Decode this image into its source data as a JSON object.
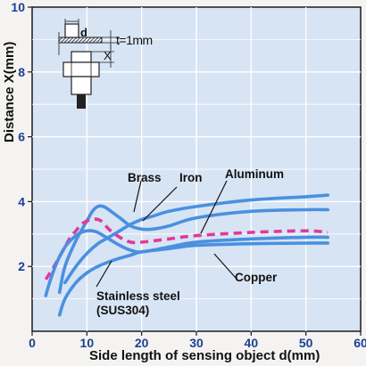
{
  "chart_data": {
    "type": "line",
    "title": "",
    "xlabel": "Side length of sensing object d(mm)",
    "ylabel": "Distance X(mm)",
    "xlim": [
      0,
      60
    ],
    "ylim": [
      0,
      10
    ],
    "x_ticks": [
      "0",
      "10",
      "20",
      "30",
      "40",
      "50",
      "60"
    ],
    "y_ticks": [
      "2",
      "4",
      "6",
      "8",
      "10"
    ],
    "grid": true,
    "legend": "none (curves labeled directly with callouts)",
    "series": [
      {
        "name": "Brass",
        "style": "solid",
        "color": "#4a90e0",
        "x": [
          5,
          6,
          8,
          10,
          11,
          12,
          13,
          14,
          16,
          18,
          20,
          22,
          25,
          30,
          40,
          50,
          54
        ],
        "y": [
          1.2,
          2.0,
          2.8,
          3.4,
          3.7,
          3.85,
          3.85,
          3.75,
          3.5,
          3.25,
          3.15,
          3.15,
          3.25,
          3.5,
          3.7,
          3.75,
          3.75
        ]
      },
      {
        "name": "Iron",
        "style": "solid",
        "color": "#4a90e0",
        "x": [
          6,
          8,
          10,
          12,
          14,
          16,
          18,
          20,
          22,
          25,
          30,
          40,
          50,
          54
        ],
        "y": [
          1.5,
          2.0,
          2.4,
          2.7,
          2.9,
          3.1,
          3.3,
          3.45,
          3.55,
          3.7,
          3.85,
          4.05,
          4.15,
          4.2
        ]
      },
      {
        "name": "Aluminum",
        "style": "dashed",
        "color": "#e03a9a",
        "x": [
          2.5,
          4,
          5,
          6,
          7,
          8,
          9,
          10,
          11,
          12,
          13,
          14,
          16,
          18,
          20,
          25,
          30,
          40,
          50,
          54
        ],
        "y": [
          1.6,
          2.0,
          2.3,
          2.6,
          2.9,
          3.1,
          3.3,
          3.4,
          3.45,
          3.45,
          3.35,
          3.15,
          2.9,
          2.75,
          2.75,
          2.85,
          2.95,
          3.05,
          3.1,
          3.05
        ]
      },
      {
        "name": "Copper",
        "style": "solid",
        "color": "#4a90e0",
        "x": [
          2.5,
          3,
          4,
          5,
          6,
          7,
          8,
          9,
          10,
          11,
          12,
          13,
          14,
          16,
          18,
          20,
          25,
          30,
          40,
          50,
          54
        ],
        "y": [
          1.1,
          1.4,
          1.9,
          2.3,
          2.6,
          2.8,
          2.95,
          3.05,
          3.1,
          3.1,
          3.05,
          2.95,
          2.85,
          2.65,
          2.5,
          2.45,
          2.6,
          2.75,
          2.85,
          2.9,
          2.9
        ]
      },
      {
        "name": "Stainless steel (SUS304)",
        "style": "solid",
        "color": "#4a90e0",
        "x": [
          5,
          6,
          8,
          10,
          12,
          15,
          18,
          20,
          25,
          30,
          40,
          50,
          54
        ],
        "y": [
          0.5,
          1.0,
          1.5,
          1.8,
          2.0,
          2.2,
          2.35,
          2.45,
          2.55,
          2.65,
          2.7,
          2.72,
          2.72
        ]
      }
    ],
    "annotations": [
      {
        "text": "Brass",
        "points_to": "Brass"
      },
      {
        "text": "Iron",
        "points_to": "Iron"
      },
      {
        "text": "Aluminum",
        "points_to": "Aluminum"
      },
      {
        "text": "Copper",
        "points_to": "Copper"
      },
      {
        "text": "Stainless steel",
        "points_to": "Stainless steel (SUS304)"
      },
      {
        "text": "(SUS304)",
        "points_to": "Stainless steel (SUS304)"
      }
    ],
    "inset": {
      "d_label": "d",
      "x_label": "X",
      "t_label": "t=1mm"
    }
  }
}
